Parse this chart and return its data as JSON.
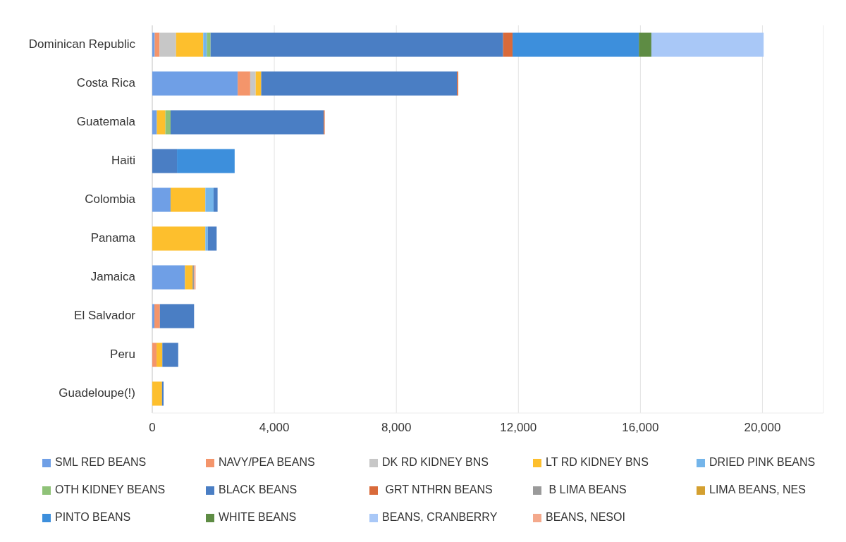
{
  "chart_data": {
    "type": "bar",
    "orientation": "horizontal",
    "stacked": true,
    "categories": [
      "Dominican Republic",
      "Costa Rica",
      "Guatemala",
      "Haiti",
      "Colombia",
      "Panama",
      "Jamaica",
      "El Salvador",
      "Peru",
      "Guadeloupe(!)"
    ],
    "xlim": [
      0,
      22000
    ],
    "xticks": [
      0,
      {
        "value": 4000,
        "label": "4,000"
      },
      {
        "value": 8000,
        "label": "8,000"
      },
      {
        "value": 12000,
        "label": "12,000"
      },
      {
        "value": 16000,
        "label": "16,000"
      },
      {
        "value": 20000,
        "label": "20,000"
      }
    ],
    "grid": "x",
    "legend": "bottom",
    "series": [
      {
        "name": "SML RED BEANS",
        "color": "#6f9fe6",
        "values": [
          80,
          2800,
          150,
          0,
          600,
          0,
          1070,
          70,
          0,
          0
        ]
      },
      {
        "name": "NAVY/PEA BEANS",
        "color": "#f4956b",
        "values": [
          160,
          410,
          0,
          0,
          0,
          0,
          0,
          180,
          140,
          0
        ]
      },
      {
        "name": "DK RD KIDNEY BNS",
        "color": "#c7c7c7",
        "values": [
          540,
          180,
          0,
          0,
          0,
          0,
          0,
          0,
          0,
          0
        ]
      },
      {
        "name": "LT RD KIDNEY BNS",
        "color": "#fdbf2d",
        "values": [
          890,
          180,
          280,
          0,
          1140,
          1740,
          250,
          0,
          190,
          320
        ]
      },
      {
        "name": "DRIED PINK BEANS",
        "color": "#74b5ea",
        "values": [
          120,
          0,
          0,
          0,
          270,
          80,
          0,
          0,
          0,
          0
        ]
      },
      {
        "name": "OTH KIDNEY BEANS",
        "color": "#8fc278",
        "values": [
          120,
          0,
          170,
          0,
          0,
          0,
          0,
          0,
          0,
          0
        ]
      },
      {
        "name": "BLACK BEANS",
        "color": "#4a7ec4",
        "values": [
          9590,
          6420,
          5020,
          810,
          130,
          290,
          0,
          1120,
          520,
          50
        ]
      },
      {
        "name": " GRT NTHRN BEANS",
        "color": "#d96a3a",
        "values": [
          310,
          40,
          30,
          0,
          0,
          0,
          0,
          0,
          0,
          0
        ]
      },
      {
        "name": " B LIMA BEANS",
        "color": "#9a9a9a",
        "values": [
          0,
          0,
          0,
          0,
          0,
          0,
          50,
          0,
          0,
          0
        ]
      },
      {
        "name": "LIMA BEANS, NES",
        "color": "#d4a030",
        "values": [
          0,
          0,
          0,
          0,
          0,
          0,
          0,
          0,
          0,
          0
        ]
      },
      {
        "name": "PINTO BEANS",
        "color": "#3d8fdc",
        "values": [
          4140,
          0,
          0,
          1890,
          0,
          0,
          0,
          0,
          0,
          0
        ]
      },
      {
        "name": "WHITE BEANS",
        "color": "#5e8c44",
        "values": [
          410,
          0,
          0,
          0,
          0,
          0,
          0,
          0,
          0,
          0
        ]
      },
      {
        "name": "BEANS, CRANBERRY",
        "color": "#a9c8f7",
        "values": [
          3680,
          0,
          0,
          0,
          0,
          0,
          0,
          0,
          0,
          0
        ]
      },
      {
        "name": "BEANS, NESOI",
        "color": "#f4a98c",
        "values": [
          0,
          0,
          0,
          0,
          0,
          0,
          50,
          0,
          0,
          0
        ]
      }
    ]
  }
}
